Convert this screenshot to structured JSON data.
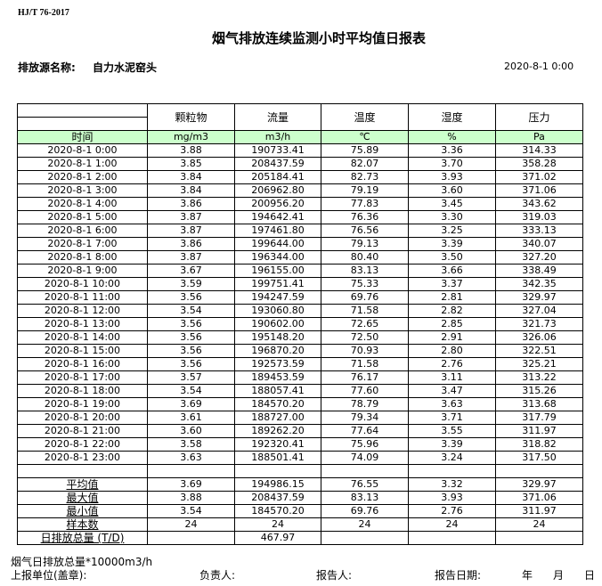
{
  "standard": "HJ/T  76-2017",
  "title": "烟气排放连续监测小时平均值日报表",
  "source_label": "排放源名称:",
  "source_value": "自力水泥窑头",
  "report_date": "2020-8-1 0:00",
  "colors": {
    "header_bg": "#ccffcc"
  },
  "columns": [
    "颗粒物",
    "流量",
    "温度",
    "湿度",
    "压力"
  ],
  "time_label": "时间",
  "units": [
    "mg/m3",
    "m3/h",
    "℃",
    "%",
    "Pa"
  ],
  "rows": [
    [
      "2020-8-1 0:00",
      "3.88",
      "190733.41",
      "75.89",
      "3.36",
      "314.33"
    ],
    [
      "2020-8-1 1:00",
      "3.85",
      "208437.59",
      "82.07",
      "3.70",
      "358.28"
    ],
    [
      "2020-8-1 2:00",
      "3.84",
      "205184.41",
      "82.73",
      "3.93",
      "371.02"
    ],
    [
      "2020-8-1 3:00",
      "3.84",
      "206962.80",
      "79.19",
      "3.60",
      "371.06"
    ],
    [
      "2020-8-1 4:00",
      "3.86",
      "200956.20",
      "77.83",
      "3.45",
      "343.62"
    ],
    [
      "2020-8-1 5:00",
      "3.87",
      "194642.41",
      "76.36",
      "3.30",
      "319.03"
    ],
    [
      "2020-8-1 6:00",
      "3.87",
      "197461.80",
      "76.56",
      "3.25",
      "333.13"
    ],
    [
      "2020-8-1 7:00",
      "3.86",
      "199644.00",
      "79.13",
      "3.39",
      "340.07"
    ],
    [
      "2020-8-1 8:00",
      "3.87",
      "196344.00",
      "80.40",
      "3.50",
      "327.20"
    ],
    [
      "2020-8-1 9:00",
      "3.67",
      "196155.00",
      "83.13",
      "3.66",
      "338.49"
    ],
    [
      "2020-8-1 10:00",
      "3.59",
      "199751.41",
      "75.33",
      "3.37",
      "342.35"
    ],
    [
      "2020-8-1 11:00",
      "3.56",
      "194247.59",
      "69.76",
      "2.81",
      "329.97"
    ],
    [
      "2020-8-1 12:00",
      "3.54",
      "193060.80",
      "71.58",
      "2.82",
      "327.04"
    ],
    [
      "2020-8-1 13:00",
      "3.56",
      "190602.00",
      "72.65",
      "2.85",
      "321.73"
    ],
    [
      "2020-8-1 14:00",
      "3.56",
      "195148.20",
      "72.50",
      "2.91",
      "326.06"
    ],
    [
      "2020-8-1 15:00",
      "3.56",
      "196870.20",
      "70.93",
      "2.80",
      "322.51"
    ],
    [
      "2020-8-1 16:00",
      "3.56",
      "192573.59",
      "71.58",
      "2.76",
      "325.21"
    ],
    [
      "2020-8-1 17:00",
      "3.57",
      "189453.59",
      "76.17",
      "3.11",
      "313.22"
    ],
    [
      "2020-8-1 18:00",
      "3.54",
      "188057.41",
      "77.60",
      "3.47",
      "315.26"
    ],
    [
      "2020-8-1 19:00",
      "3.69",
      "184570.20",
      "78.79",
      "3.63",
      "313.68"
    ],
    [
      "2020-8-1 20:00",
      "3.61",
      "188727.00",
      "79.34",
      "3.71",
      "317.79"
    ],
    [
      "2020-8-1 21:00",
      "3.60",
      "189262.20",
      "77.64",
      "3.55",
      "311.97"
    ],
    [
      "2020-8-1 22:00",
      "3.58",
      "192320.41",
      "75.96",
      "3.39",
      "318.82"
    ],
    [
      "2020-8-1 23:00",
      "3.63",
      "188501.41",
      "74.09",
      "3.24",
      "317.50"
    ]
  ],
  "summary": [
    [
      "平均值",
      "3.69",
      "194986.15",
      "76.55",
      "3.32",
      "329.97"
    ],
    [
      "最大值",
      "3.88",
      "208437.59",
      "83.13",
      "3.93",
      "371.06"
    ],
    [
      "最小值",
      "3.54",
      "184570.20",
      "69.76",
      "2.76",
      "311.97"
    ],
    [
      "样本数",
      "24",
      "24",
      "24",
      "24",
      "24"
    ],
    [
      "日排放总量 (T/D)",
      "",
      "467.97",
      "",
      "",
      ""
    ]
  ],
  "footer": {
    "note": "烟气日排放总量*10000m3/h",
    "unit_label": "上报单位(盖章):",
    "responsible_label": "负责人:",
    "reporter_label": "报告人:",
    "date_label": "报告日期:",
    "year": "年",
    "month": "月",
    "day": "日"
  }
}
